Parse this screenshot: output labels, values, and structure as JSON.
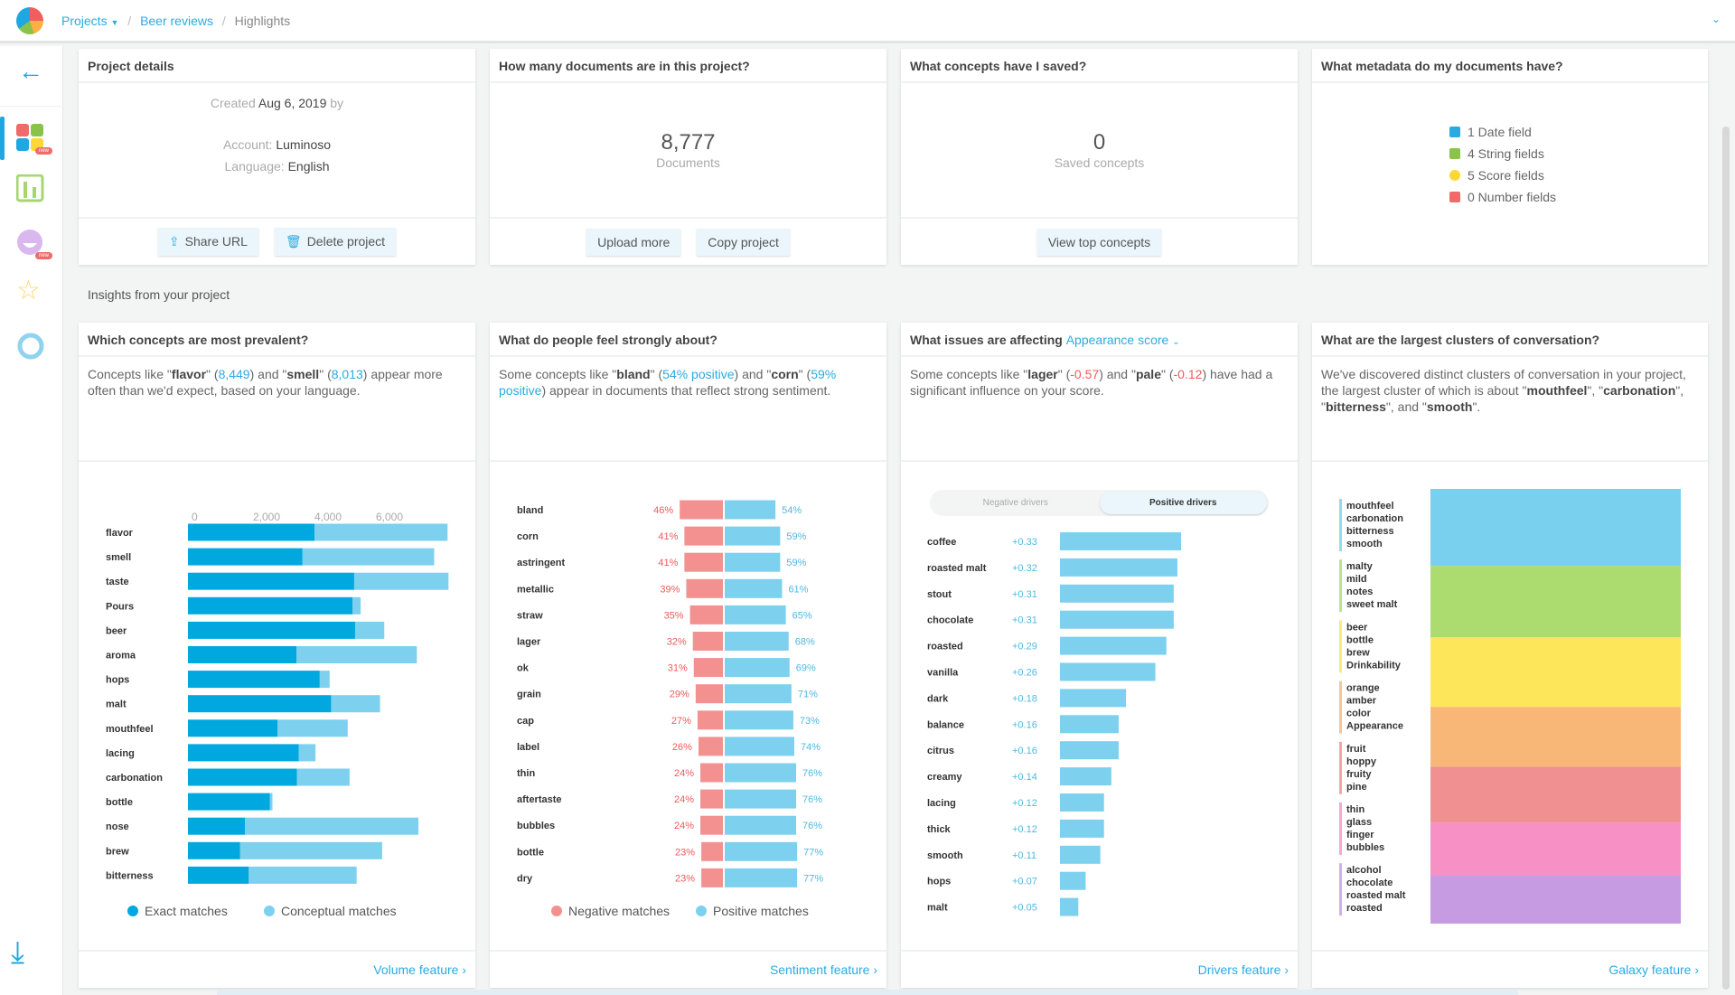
{
  "breadcrumb": {
    "projects": "Projects",
    "project": "Beer reviews",
    "current": "Highlights"
  },
  "colors": {
    "accent": "#1ea7e1",
    "exact": "#00a8e0",
    "conceptual": "#7dd0ee",
    "negative": "#f39191",
    "positive": "#7dd0ee",
    "negative_text": "#f05a5a"
  },
  "sidebar": {
    "badge": "new",
    "icons": [
      "back-arrow-icon",
      "highlights-icon",
      "volume-icon",
      "sentiment-icon",
      "drivers-icon",
      "galaxy-icon",
      "download-icon"
    ]
  },
  "project_details": {
    "title": "Project details",
    "created_label": "Created",
    "created_date": "Aug 6, 2019",
    "created_by": "by",
    "account_label": "Account:",
    "account": "Luminoso",
    "language_label": "Language:",
    "language": "English",
    "share": "Share URL",
    "delete": "Delete project"
  },
  "documents": {
    "title": "How many documents are in this project?",
    "count": "8,777",
    "label": "Documents",
    "upload": "Upload more",
    "copy": "Copy project"
  },
  "saved": {
    "title": "What concepts have I saved?",
    "count": "0",
    "label": "Saved concepts",
    "view": "View top concepts"
  },
  "metadata": {
    "title": "What metadata do my documents have?",
    "fields": [
      {
        "icon": "calendar-icon",
        "color": "#29abe2",
        "text": "1 Date field"
      },
      {
        "icon": "tag-icon",
        "color": "#8bc34a",
        "text": "4 String fields"
      },
      {
        "icon": "star-icon",
        "color": "#fdd835",
        "text": "5 Score fields"
      },
      {
        "icon": "hash-icon",
        "color": "#f06a6a",
        "text": "0 Number fields"
      }
    ]
  },
  "insights_label": "Insights from your project",
  "volume": {
    "title": "Which concepts are most prevalent?",
    "desc": [
      {
        "t": "Concepts like \""
      },
      {
        "t": "flavor",
        "s": "b"
      },
      {
        "t": "\" ("
      },
      {
        "t": "8,449",
        "s": "l"
      },
      {
        "t": ") and \""
      },
      {
        "t": "smell",
        "s": "b"
      },
      {
        "t": "\" ("
      },
      {
        "t": "8,013",
        "s": "l"
      },
      {
        "t": ") appear more often than we'd expect, based on your language."
      }
    ],
    "link": "Volume feature ›"
  },
  "sentiment": {
    "title": "What do people feel strongly about?",
    "desc": [
      {
        "t": "Some concepts like \""
      },
      {
        "t": "bland",
        "s": "b"
      },
      {
        "t": "\" ("
      },
      {
        "t": "54% positive",
        "s": "l"
      },
      {
        "t": ") and \""
      },
      {
        "t": "corn",
        "s": "b"
      },
      {
        "t": "\" ("
      },
      {
        "t": "59% positive",
        "s": "l"
      },
      {
        "t": ") appear in documents that reflect strong sentiment."
      }
    ],
    "link": "Sentiment feature ›"
  },
  "drivers": {
    "title": "What issues are affecting",
    "score": "Appearance score",
    "desc": [
      {
        "t": "Some concepts like \""
      },
      {
        "t": "lager",
        "s": "b"
      },
      {
        "t": "\" ("
      },
      {
        "t": "-0.57",
        "s": "r"
      },
      {
        "t": ") and \""
      },
      {
        "t": "pale",
        "s": "b"
      },
      {
        "t": "\" ("
      },
      {
        "t": "-0.12",
        "s": "r"
      },
      {
        "t": ") have had a significant influence on your score."
      }
    ],
    "toggle": [
      "Negative drivers",
      "Positive drivers"
    ],
    "active_toggle": "Positive drivers",
    "link": "Drivers feature ›"
  },
  "clusters": {
    "title": "What are the largest clusters of conversation?",
    "desc": [
      {
        "t": "We've discovered distinct clusters of conversation in your project, the largest cluster of which is about \""
      },
      {
        "t": "mouthfeel",
        "s": "b"
      },
      {
        "t": "\", \""
      },
      {
        "t": "carbonation",
        "s": "b"
      },
      {
        "t": "\", \""
      },
      {
        "t": "bitterness",
        "s": "b"
      },
      {
        "t": "\", and \""
      },
      {
        "t": "smooth",
        "s": "b"
      },
      {
        "t": "\"."
      }
    ],
    "link": "Galaxy feature ›"
  },
  "chart_data": [
    {
      "type": "bar",
      "stacked": true,
      "orientation": "horizontal",
      "categories": [
        "flavor",
        "smell",
        "taste",
        "Pours",
        "beer",
        "aroma",
        "hops",
        "malt",
        "mouthfeel",
        "lacing",
        "carbonation",
        "bottle",
        "nose",
        "brew",
        "bitterness"
      ],
      "series": [
        {
          "name": "Exact matches",
          "values": [
            4120,
            3730,
            5410,
            5360,
            5440,
            3530,
            4290,
            4660,
            2920,
            3610,
            3550,
            2670,
            1860,
            1700,
            1980
          ]
        },
        {
          "name": "Conceptual matches",
          "values": [
            4329,
            4283,
            3070,
            260,
            950,
            3920,
            320,
            1590,
            2280,
            540,
            1710,
            80,
            5640,
            4620,
            3510
          ]
        }
      ],
      "xticks": [
        "0",
        "2,000",
        "4,000",
        "6,000"
      ],
      "xlim": [
        0,
        8500
      ],
      "legend": "bottom"
    },
    {
      "type": "bar",
      "diverging": true,
      "orientation": "horizontal",
      "categories": [
        "bland",
        "corn",
        "astringent",
        "metallic",
        "straw",
        "lager",
        "ok",
        "grain",
        "cap",
        "label",
        "thin",
        "aftertaste",
        "bubbles",
        "bottle",
        "dry"
      ],
      "series": [
        {
          "name": "Negative matches",
          "values": [
            46,
            41,
            41,
            39,
            35,
            32,
            31,
            29,
            27,
            26,
            24,
            24,
            24,
            23,
            23
          ]
        },
        {
          "name": "Positive matches",
          "values": [
            54,
            59,
            59,
            61,
            65,
            68,
            69,
            71,
            73,
            74,
            76,
            76,
            76,
            77,
            77
          ]
        }
      ],
      "unit": "%",
      "legend": "bottom"
    },
    {
      "type": "bar",
      "orientation": "horizontal",
      "categories": [
        "coffee",
        "roasted malt",
        "stout",
        "chocolate",
        "roasted",
        "vanilla",
        "dark",
        "balance",
        "citrus",
        "creamy",
        "lacing",
        "thick",
        "smooth",
        "hops",
        "malt"
      ],
      "values": [
        0.33,
        0.32,
        0.31,
        0.31,
        0.29,
        0.26,
        0.18,
        0.16,
        0.16,
        0.14,
        0.12,
        0.12,
        0.11,
        0.07,
        0.05
      ],
      "labels": [
        "+0.33",
        "+0.32",
        "+0.31",
        "+0.31",
        "+0.29",
        "+0.26",
        "+0.18",
        "+0.16",
        "+0.16",
        "+0.14",
        "+0.12",
        "+0.12",
        "+0.11",
        "+0.07",
        "+0.05"
      ]
    },
    {
      "type": "bar",
      "stacked": true,
      "orientation": "vertical",
      "clusters": [
        {
          "terms": [
            "mouthfeel",
            "carbonation",
            "bitterness",
            "smooth"
          ],
          "color": "#78cfee",
          "relative_size": 255
        },
        {
          "terms": [
            "malty",
            "mild",
            "notes",
            "sweet malt"
          ],
          "color": "#acdb70",
          "relative_size": 237
        },
        {
          "terms": [
            "beer",
            "bottle",
            "brew",
            "Drinkability"
          ],
          "color": "#fde65a",
          "relative_size": 230
        },
        {
          "terms": [
            "orange",
            "amber",
            "color",
            "Appearance"
          ],
          "color": "#f9b777",
          "relative_size": 198
        },
        {
          "terms": [
            "fruit",
            "hoppy",
            "fruity",
            "pine"
          ],
          "color": "#f09090",
          "relative_size": 185
        },
        {
          "terms": [
            "thin",
            "glass",
            "finger",
            "bubbles"
          ],
          "color": "#f790c5",
          "relative_size": 175
        },
        {
          "terms": [
            "alcohol",
            "chocolate",
            "roasted malt",
            "roasted"
          ],
          "color": "#c69be2",
          "relative_size": 160
        }
      ]
    }
  ]
}
